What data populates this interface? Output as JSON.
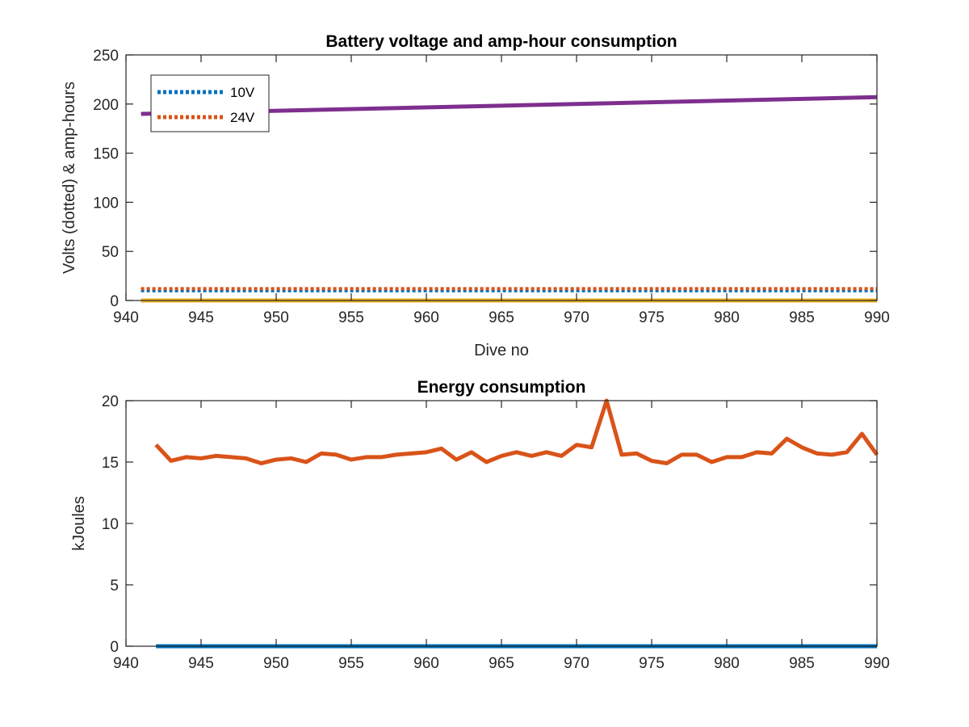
{
  "chart_data": [
    {
      "type": "line",
      "title": "Battery voltage and amp-hour consumption",
      "xlabel": "Dive no",
      "ylabel": "Volts (dotted) & amp-hours",
      "xlim": [
        940,
        990
      ],
      "ylim": [
        0,
        250
      ],
      "xticks": [
        940,
        945,
        950,
        955,
        960,
        965,
        970,
        975,
        980,
        985,
        990
      ],
      "yticks": [
        0,
        50,
        100,
        150,
        200,
        250
      ],
      "grid": false,
      "legend_position": "top-left",
      "series": [
        {
          "name": "10V",
          "style": "dotted",
          "color": "#0072BD",
          "x": [
            941,
            990
          ],
          "y": [
            10,
            10
          ]
        },
        {
          "name": "24V",
          "style": "dotted",
          "color": "#D95319",
          "x": [
            941,
            990
          ],
          "y": [
            12,
            12
          ]
        },
        {
          "style": "solid",
          "color": "#7E2F8E",
          "x": [
            941,
            990
          ],
          "y": [
            190,
            207
          ]
        },
        {
          "style": "solid",
          "color": "#EDB120",
          "x": [
            941,
            990
          ],
          "y": [
            0,
            0
          ]
        }
      ]
    },
    {
      "type": "line",
      "title": "Energy consumption",
      "xlabel": "",
      "ylabel": "kJoules",
      "xlim": [
        940,
        990
      ],
      "ylim": [
        0,
        20
      ],
      "xticks": [
        940,
        945,
        950,
        955,
        960,
        965,
        970,
        975,
        980,
        985,
        990
      ],
      "yticks": [
        0,
        5,
        10,
        15,
        20
      ],
      "grid": false,
      "series": [
        {
          "style": "solid",
          "color": "#0072BD",
          "x": [
            942,
            990
          ],
          "y": [
            0,
            0
          ]
        },
        {
          "style": "solid",
          "color": "#D95319",
          "x": [
            942,
            943,
            944,
            945,
            946,
            947,
            948,
            949,
            950,
            951,
            952,
            953,
            954,
            955,
            956,
            957,
            958,
            959,
            960,
            961,
            962,
            963,
            964,
            965,
            966,
            967,
            968,
            969,
            970,
            971,
            972,
            973,
            974,
            975,
            976,
            977,
            978,
            979,
            980,
            981,
            982,
            983,
            984,
            985,
            986,
            987,
            988,
            989,
            990
          ],
          "y": [
            16.4,
            15.1,
            15.4,
            15.3,
            15.5,
            15.4,
            15.3,
            14.9,
            15.2,
            15.3,
            15.0,
            15.7,
            15.6,
            15.2,
            15.4,
            15.4,
            15.6,
            15.7,
            15.8,
            16.1,
            15.2,
            15.8,
            15.0,
            15.5,
            15.8,
            15.5,
            15.8,
            15.5,
            16.4,
            16.2,
            20.0,
            15.6,
            15.7,
            15.1,
            14.9,
            15.6,
            15.6,
            15.0,
            15.4,
            15.4,
            15.8,
            15.7,
            16.9,
            16.2,
            15.7,
            15.6,
            15.8,
            17.3,
            15.6
          ]
        }
      ]
    }
  ]
}
